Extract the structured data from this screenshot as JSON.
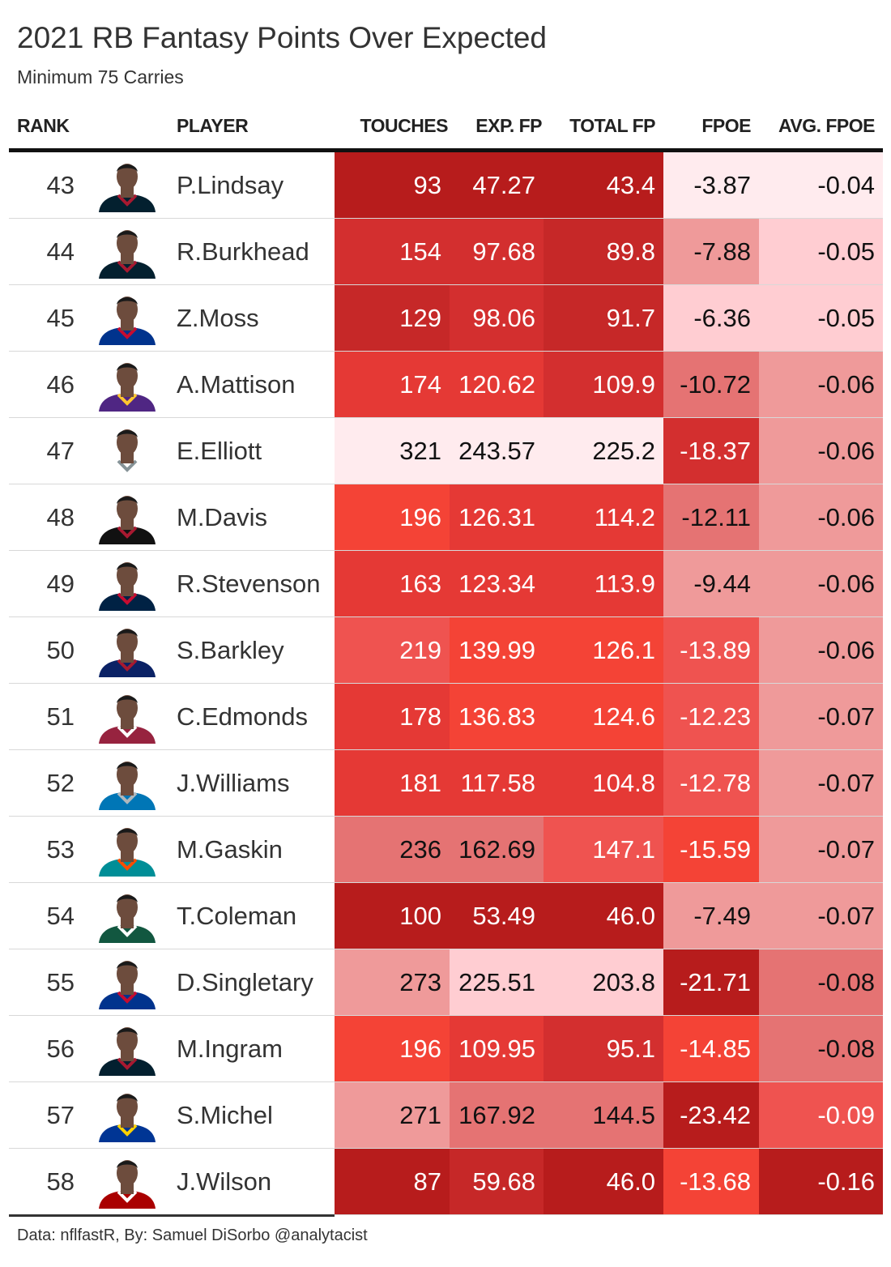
{
  "title": "2021 RB Fantasy Points Over Expected",
  "subtitle": "Minimum 75 Carries",
  "footer": "Data: nflfastR, By: Samuel DiSorbo @analytacist",
  "columns": {
    "rank": "RANK",
    "player": "PLAYER",
    "touches": "TOUCHES",
    "exp_fp": "EXP. FP",
    "total_fp": "TOTAL FP",
    "fpoe": "FPOE",
    "avg_fpoe": "AVG. FPOE"
  },
  "chart_data": {
    "type": "table",
    "title": "2021 RB Fantasy Points Over Expected",
    "subtitle": "Minimum 75 Carries",
    "rows": [
      {
        "rank": "43",
        "player": "P.Lindsay",
        "touches": "93",
        "exp_fp": "47.27",
        "total_fp": "43.4",
        "fpoe": "-3.87",
        "avg_fpoe": "-0.04",
        "team": "texans"
      },
      {
        "rank": "44",
        "player": "R.Burkhead",
        "touches": "154",
        "exp_fp": "97.68",
        "total_fp": "89.8",
        "fpoe": "-7.88",
        "avg_fpoe": "-0.05",
        "team": "texans"
      },
      {
        "rank": "45",
        "player": "Z.Moss",
        "touches": "129",
        "exp_fp": "98.06",
        "total_fp": "91.7",
        "fpoe": "-6.36",
        "avg_fpoe": "-0.05",
        "team": "bills"
      },
      {
        "rank": "46",
        "player": "A.Mattison",
        "touches": "174",
        "exp_fp": "120.62",
        "total_fp": "109.9",
        "fpoe": "-10.72",
        "avg_fpoe": "-0.06",
        "team": "vikings"
      },
      {
        "rank": "47",
        "player": "E.Elliott",
        "touches": "321",
        "exp_fp": "243.57",
        "total_fp": "225.2",
        "fpoe": "-18.37",
        "avg_fpoe": "-0.06",
        "team": "cowboys"
      },
      {
        "rank": "48",
        "player": "M.Davis",
        "touches": "196",
        "exp_fp": "126.31",
        "total_fp": "114.2",
        "fpoe": "-12.11",
        "avg_fpoe": "-0.06",
        "team": "falcons"
      },
      {
        "rank": "49",
        "player": "R.Stevenson",
        "touches": "163",
        "exp_fp": "123.34",
        "total_fp": "113.9",
        "fpoe": "-9.44",
        "avg_fpoe": "-0.06",
        "team": "patriots"
      },
      {
        "rank": "50",
        "player": "S.Barkley",
        "touches": "219",
        "exp_fp": "139.99",
        "total_fp": "126.1",
        "fpoe": "-13.89",
        "avg_fpoe": "-0.06",
        "team": "giants"
      },
      {
        "rank": "51",
        "player": "C.Edmonds",
        "touches": "178",
        "exp_fp": "136.83",
        "total_fp": "124.6",
        "fpoe": "-12.23",
        "avg_fpoe": "-0.07",
        "team": "cardinals"
      },
      {
        "rank": "52",
        "player": "J.Williams",
        "touches": "181",
        "exp_fp": "117.58",
        "total_fp": "104.8",
        "fpoe": "-12.78",
        "avg_fpoe": "-0.07",
        "team": "lions"
      },
      {
        "rank": "53",
        "player": "M.Gaskin",
        "touches": "236",
        "exp_fp": "162.69",
        "total_fp": "147.1",
        "fpoe": "-15.59",
        "avg_fpoe": "-0.07",
        "team": "dolphins"
      },
      {
        "rank": "54",
        "player": "T.Coleman",
        "touches": "100",
        "exp_fp": "53.49",
        "total_fp": "46.0",
        "fpoe": "-7.49",
        "avg_fpoe": "-0.07",
        "team": "jets"
      },
      {
        "rank": "55",
        "player": "D.Singletary",
        "touches": "273",
        "exp_fp": "225.51",
        "total_fp": "203.8",
        "fpoe": "-21.71",
        "avg_fpoe": "-0.08",
        "team": "bills"
      },
      {
        "rank": "56",
        "player": "M.Ingram",
        "touches": "196",
        "exp_fp": "109.95",
        "total_fp": "95.1",
        "fpoe": "-14.85",
        "avg_fpoe": "-0.08",
        "team": "texans"
      },
      {
        "rank": "57",
        "player": "S.Michel",
        "touches": "271",
        "exp_fp": "167.92",
        "total_fp": "144.5",
        "fpoe": "-23.42",
        "avg_fpoe": "-0.09",
        "team": "rams"
      },
      {
        "rank": "58",
        "player": "J.Wilson",
        "touches": "87",
        "exp_fp": "59.68",
        "total_fp": "46.0",
        "fpoe": "-13.68",
        "avg_fpoe": "-0.16",
        "team": "49ers"
      }
    ],
    "cell_colors": {
      "touches": [
        "#b71c1c",
        "#d32f2f",
        "#c62828",
        "#e53935",
        "#ffebee",
        "#f44336",
        "#e53935",
        "#ef5350",
        "#e53935",
        "#e53935",
        "#e57373",
        "#b71c1c",
        "#ef9a9a",
        "#f44336",
        "#ef9a9a",
        "#b71c1c"
      ],
      "exp_fp": [
        "#b71c1c",
        "#d32f2f",
        "#d32f2f",
        "#e53935",
        "#ffebee",
        "#e53935",
        "#e53935",
        "#f44336",
        "#f44336",
        "#e53935",
        "#e57373",
        "#b71c1c",
        "#ffcdd2",
        "#e53935",
        "#e57373",
        "#c62828"
      ],
      "total_fp": [
        "#b71c1c",
        "#c62828",
        "#c62828",
        "#d32f2f",
        "#ffebee",
        "#e53935",
        "#e53935",
        "#f44336",
        "#f44336",
        "#e53935",
        "#ef5350",
        "#b71c1c",
        "#ffcdd2",
        "#d32f2f",
        "#e57373",
        "#b71c1c"
      ],
      "fpoe": [
        "#ffebee",
        "#ef9a9a",
        "#ffcdd2",
        "#e57373",
        "#d32f2f",
        "#e57373",
        "#ef9a9a",
        "#ef5350",
        "#ef5350",
        "#ef5350",
        "#f44336",
        "#ef9a9a",
        "#b71c1c",
        "#f44336",
        "#b71c1c",
        "#f44336"
      ],
      "avg_fpoe": [
        "#ffebee",
        "#ffcdd2",
        "#ffcdd2",
        "#ef9a9a",
        "#ef9a9a",
        "#ef9a9a",
        "#ef9a9a",
        "#ef9a9a",
        "#ef9a9a",
        "#ef9a9a",
        "#ef9a9a",
        "#ef9a9a",
        "#e57373",
        "#e57373",
        "#ef5350",
        "#b71c1c"
      ]
    },
    "team_colors": {
      "texans": {
        "jersey": "#03202f",
        "trim": "#a71930"
      },
      "bills": {
        "jersey": "#00338d",
        "trim": "#c60c30"
      },
      "vikings": {
        "jersey": "#4f2683",
        "trim": "#ffc62f"
      },
      "cowboys": {
        "jersey": "#ffffff",
        "trim": "#869397"
      },
      "falcons": {
        "jersey": "#111111",
        "trim": "#a71930"
      },
      "patriots": {
        "jersey": "#002244",
        "trim": "#c60c30"
      },
      "giants": {
        "jersey": "#0b2265",
        "trim": "#a71930"
      },
      "cardinals": {
        "jersey": "#97233f",
        "trim": "#ffffff"
      },
      "lions": {
        "jersey": "#0076b6",
        "trim": "#b0b7bc"
      },
      "dolphins": {
        "jersey": "#008e97",
        "trim": "#fc4c02"
      },
      "jets": {
        "jersey": "#125740",
        "trim": "#ffffff"
      },
      "rams": {
        "jersey": "#003594",
        "trim": "#ffd100"
      },
      "49ers": {
        "jersey": "#aa0000",
        "trim": "#ffffff"
      }
    }
  }
}
